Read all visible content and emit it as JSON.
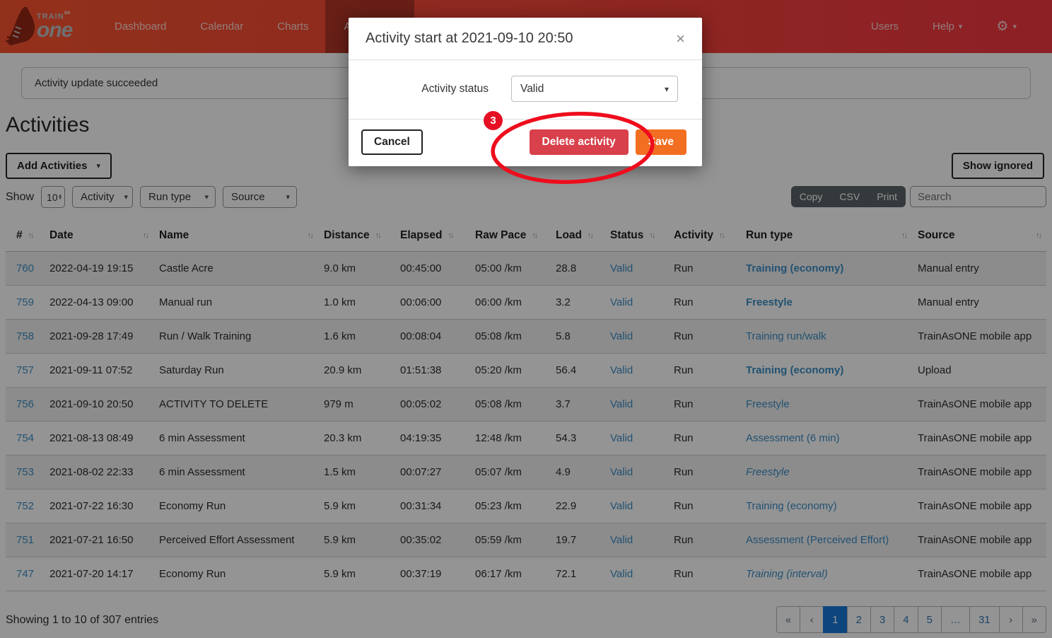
{
  "navbar": {
    "brand": {
      "train": "TRAIN",
      "as": "as",
      "one": "one"
    },
    "items": [
      {
        "label": "Dashboard",
        "active": false
      },
      {
        "label": "Calendar",
        "active": false
      },
      {
        "label": "Charts",
        "active": false
      },
      {
        "label": "Activities",
        "active": true
      }
    ],
    "right": {
      "users": "Users",
      "help": "Help"
    }
  },
  "alert": {
    "text": "Activity update succeeded"
  },
  "page": {
    "title": "Activities"
  },
  "toolbar": {
    "add_activities_label": "Add Activities",
    "show_ignored_label": "Show ignored",
    "show_label": "Show",
    "show_value": "10",
    "filter_activity": "Activity",
    "filter_run_type": "Run type",
    "filter_source": "Source",
    "export_buttons": [
      "Copy",
      "CSV",
      "Print"
    ],
    "search_placeholder": "Search"
  },
  "table": {
    "headers": [
      "#",
      "Date",
      "Name",
      "Distance",
      "Elapsed",
      "Raw Pace",
      "Load",
      "Status",
      "Activity",
      "Run type",
      "Source"
    ],
    "rows": [
      {
        "id": "760",
        "date": "2022-04-19 19:15",
        "name": "Castle Acre",
        "distance": "9.0 km",
        "elapsed": "00:45:00",
        "raw_pace": "05:00 /km",
        "load": "28.8",
        "status": "Valid",
        "activity": "Run",
        "run_type": "Training (economy)",
        "run_type_style": "bold",
        "source": "Manual entry"
      },
      {
        "id": "759",
        "date": "2022-04-13 09:00",
        "name": "Manual run",
        "distance": "1.0 km",
        "elapsed": "00:06:00",
        "raw_pace": "06:00 /km",
        "load": "3.2",
        "status": "Valid",
        "activity": "Run",
        "run_type": "Freestyle",
        "run_type_style": "bold",
        "source": "Manual entry"
      },
      {
        "id": "758",
        "date": "2021-09-28 17:49",
        "name": "Run / Walk Training",
        "distance": "1.6 km",
        "elapsed": "00:08:04",
        "raw_pace": "05:08 /km",
        "load": "5.8",
        "status": "Valid",
        "activity": "Run",
        "run_type": "Training run/walk",
        "run_type_style": "normal",
        "source": "TrainAsONE mobile app"
      },
      {
        "id": "757",
        "date": "2021-09-11 07:52",
        "name": "Saturday Run",
        "distance": "20.9 km",
        "elapsed": "01:51:38",
        "raw_pace": "05:20 /km",
        "load": "56.4",
        "status": "Valid",
        "activity": "Run",
        "run_type": "Training (economy)",
        "run_type_style": "bold",
        "source": "Upload"
      },
      {
        "id": "756",
        "date": "2021-09-10 20:50",
        "name": "ACTIVITY TO DELETE",
        "distance": "979 m",
        "elapsed": "00:05:02",
        "raw_pace": "05:08 /km",
        "load": "3.7",
        "status": "Valid",
        "activity": "Run",
        "run_type": "Freestyle",
        "run_type_style": "normal",
        "source": "TrainAsONE mobile app"
      },
      {
        "id": "754",
        "date": "2021-08-13 08:49",
        "name": "6 min Assessment",
        "distance": "20.3 km",
        "elapsed": "04:19:35",
        "raw_pace": "12:48 /km",
        "load": "54.3",
        "status": "Valid",
        "activity": "Run",
        "run_type": "Assessment (6 min)",
        "run_type_style": "normal",
        "source": "TrainAsONE mobile app"
      },
      {
        "id": "753",
        "date": "2021-08-02 22:33",
        "name": "6 min Assessment",
        "distance": "1.5 km",
        "elapsed": "00:07:27",
        "raw_pace": "05:07 /km",
        "load": "4.9",
        "status": "Valid",
        "activity": "Run",
        "run_type": "Freestyle",
        "run_type_style": "italic",
        "source": "TrainAsONE mobile app"
      },
      {
        "id": "752",
        "date": "2021-07-22 16:30",
        "name": "Economy Run",
        "distance": "5.9 km",
        "elapsed": "00:31:34",
        "raw_pace": "05:23 /km",
        "load": "22.9",
        "status": "Valid",
        "activity": "Run",
        "run_type": "Training (economy)",
        "run_type_style": "normal",
        "source": "TrainAsONE mobile app"
      },
      {
        "id": "751",
        "date": "2021-07-21 16:50",
        "name": "Perceived Effort Assessment",
        "distance": "5.9 km",
        "elapsed": "00:35:02",
        "raw_pace": "05:59 /km",
        "load": "19.7",
        "status": "Valid",
        "activity": "Run",
        "run_type": "Assessment (Perceived Effort)",
        "run_type_style": "normal",
        "source": "TrainAsONE mobile app"
      },
      {
        "id": "747",
        "date": "2021-07-20 14:17",
        "name": "Economy Run",
        "distance": "5.9 km",
        "elapsed": "00:37:19",
        "raw_pace": "06:17 /km",
        "load": "72.1",
        "status": "Valid",
        "activity": "Run",
        "run_type": "Training (interval)",
        "run_type_style": "italic",
        "source": "TrainAsONE mobile app"
      }
    ]
  },
  "table_footer": {
    "showing_text": "Showing 1 to 10 of 307 entries",
    "pagination": [
      {
        "label": "«",
        "kind": "arrow"
      },
      {
        "label": "‹",
        "kind": "arrow"
      },
      {
        "label": "1",
        "kind": "page",
        "active": true
      },
      {
        "label": "2",
        "kind": "page"
      },
      {
        "label": "3",
        "kind": "page"
      },
      {
        "label": "4",
        "kind": "page"
      },
      {
        "label": "5",
        "kind": "page"
      },
      {
        "label": "…",
        "kind": "page"
      },
      {
        "label": "31",
        "kind": "page"
      },
      {
        "label": "›",
        "kind": "arrow"
      },
      {
        "label": "»",
        "kind": "arrow"
      }
    ]
  },
  "modal": {
    "title": "Activity start at 2021-09-10 20:50",
    "close_icon": "×",
    "status_label": "Activity status",
    "status_value": "Valid",
    "cancel_label": "Cancel",
    "delete_label": "Delete activity",
    "save_label": "Save"
  },
  "annotation": {
    "step_number": "3"
  },
  "icons": {
    "caret_down": "▾",
    "gear": "⚙",
    "sort": "↑↓",
    "spinner_up": "▲",
    "spinner_down": "▼"
  },
  "colors": {
    "navbar_gradient_start": "#fb5530",
    "navbar_gradient_end": "#f23741",
    "link_blue": "#3c8dc5",
    "active_page_blue": "#1878d8",
    "delete_red": "#d8404b",
    "save_orange": "#f26f22",
    "annotation_red": "#ee0d1c",
    "export_group_dark": "#5a6268"
  }
}
